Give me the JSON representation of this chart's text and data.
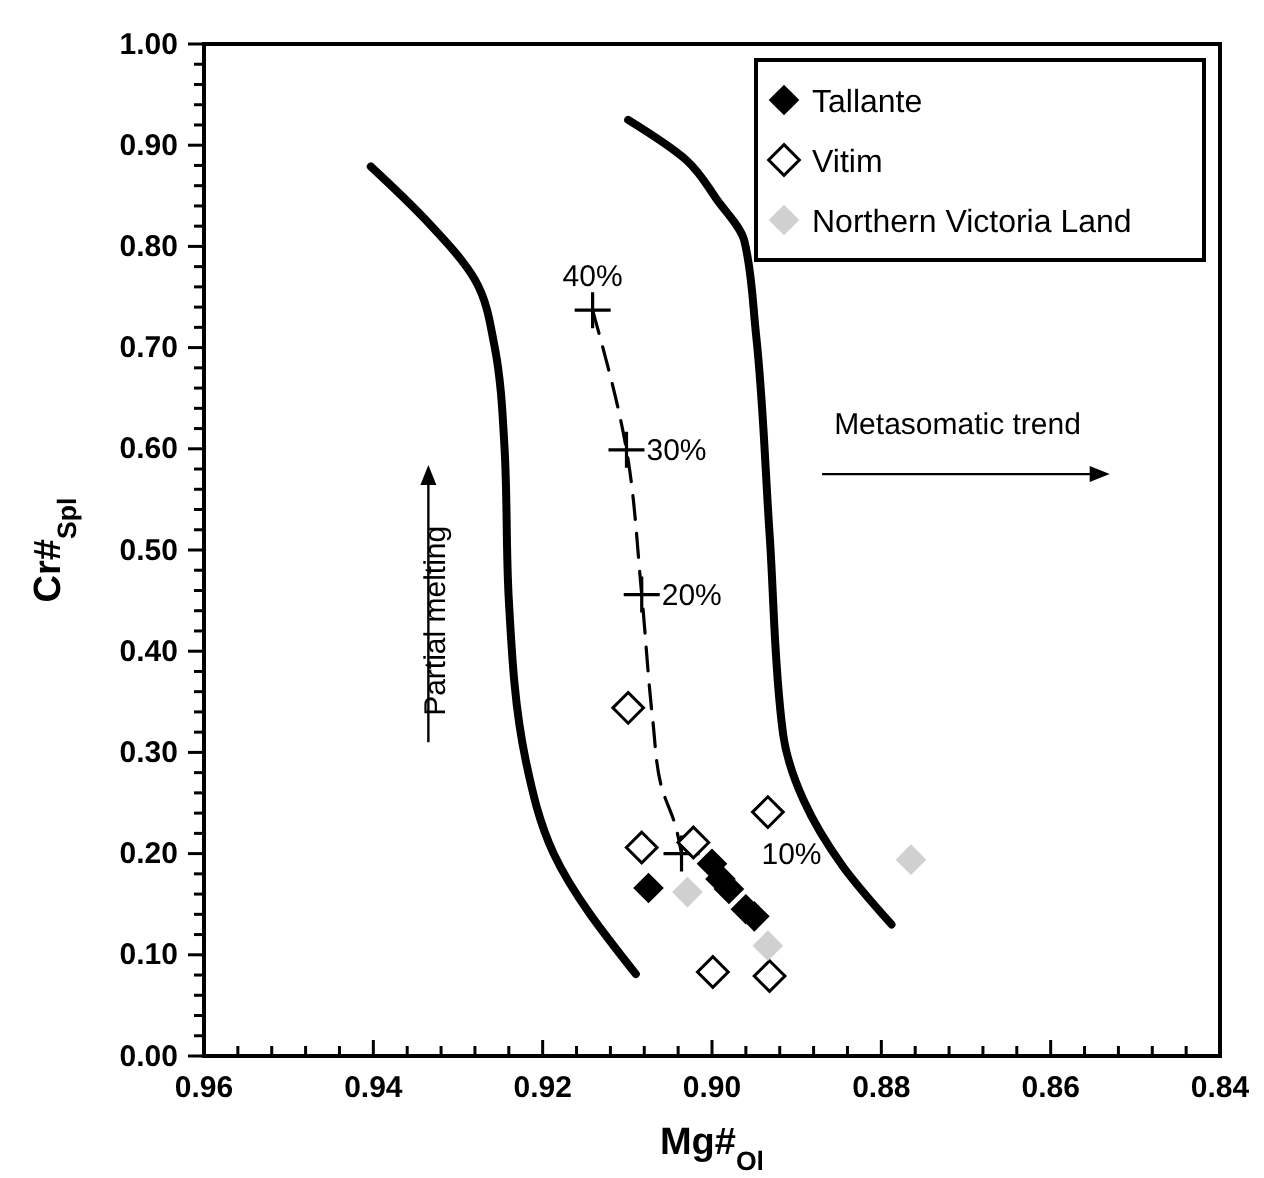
{
  "chart_data": {
    "type": "scatter",
    "xlabel": "Mg#$_{Ol}$",
    "ylabel": "Cr#$_{Spl}$",
    "xlim": [
      0.96,
      0.84
    ],
    "ylim": [
      0,
      1
    ],
    "xticks": [
      {
        "value": 0.96,
        "label": "0.96"
      },
      {
        "value": 0.956,
        "label": null
      },
      {
        "value": 0.952,
        "label": null
      },
      {
        "value": 0.948,
        "label": null
      },
      {
        "value": 0.944,
        "label": null
      },
      {
        "value": 0.94,
        "label": "0.94"
      },
      {
        "value": 0.936,
        "label": null
      },
      {
        "value": 0.932,
        "label": null
      },
      {
        "value": 0.928,
        "label": null
      },
      {
        "value": 0.924,
        "label": null
      },
      {
        "value": 0.92,
        "label": "0.92"
      },
      {
        "value": 0.916,
        "label": null
      },
      {
        "value": 0.912,
        "label": null
      },
      {
        "value": 0.908,
        "label": null
      },
      {
        "value": 0.904,
        "label": null
      },
      {
        "value": 0.9,
        "label": "0.90"
      },
      {
        "value": 0.896,
        "label": null
      },
      {
        "value": 0.892,
        "label": null
      },
      {
        "value": 0.888,
        "label": null
      },
      {
        "value": 0.884,
        "label": null
      },
      {
        "value": 0.88,
        "label": "0.88"
      },
      {
        "value": 0.876,
        "label": null
      },
      {
        "value": 0.872,
        "label": null
      },
      {
        "value": 0.868,
        "label": null
      },
      {
        "value": 0.864,
        "label": null
      },
      {
        "value": 0.86,
        "label": "0.86"
      },
      {
        "value": 0.856,
        "label": null
      },
      {
        "value": 0.852,
        "label": null
      },
      {
        "value": 0.848,
        "label": null
      },
      {
        "value": 0.844,
        "label": null
      },
      {
        "value": 0.84,
        "label": "0.84"
      }
    ],
    "yticks": [
      {
        "value": 0,
        "label": "0.00"
      },
      {
        "value": 0.02,
        "label": null
      },
      {
        "value": 0.04,
        "label": null
      },
      {
        "value": 0.06,
        "label": null
      },
      {
        "value": 0.08,
        "label": null
      },
      {
        "value": 0.1,
        "label": "0.10"
      },
      {
        "value": 0.12,
        "label": null
      },
      {
        "value": 0.14,
        "label": null
      },
      {
        "value": 0.16,
        "label": null
      },
      {
        "value": 0.18,
        "label": null
      },
      {
        "value": 0.2,
        "label": "0.20"
      },
      {
        "value": 0.22,
        "label": null
      },
      {
        "value": 0.24,
        "label": null
      },
      {
        "value": 0.26,
        "label": null
      },
      {
        "value": 0.28,
        "label": null
      },
      {
        "value": 0.3,
        "label": "0.30"
      },
      {
        "value": 0.32,
        "label": null
      },
      {
        "value": 0.34,
        "label": null
      },
      {
        "value": 0.36,
        "label": null
      },
      {
        "value": 0.38,
        "label": null
      },
      {
        "value": 0.4,
        "label": "0.40"
      },
      {
        "value": 0.42,
        "label": null
      },
      {
        "value": 0.44,
        "label": null
      },
      {
        "value": 0.46,
        "label": null
      },
      {
        "value": 0.48,
        "label": null
      },
      {
        "value": 0.5,
        "label": "0.50"
      },
      {
        "value": 0.52,
        "label": null
      },
      {
        "value": 0.54,
        "label": null
      },
      {
        "value": 0.56,
        "label": null
      },
      {
        "value": 0.58,
        "label": null
      },
      {
        "value": 0.6,
        "label": "0.60"
      },
      {
        "value": 0.62,
        "label": null
      },
      {
        "value": 0.64,
        "label": null
      },
      {
        "value": 0.66,
        "label": null
      },
      {
        "value": 0.68,
        "label": null
      },
      {
        "value": 0.7,
        "label": "0.70"
      },
      {
        "value": 0.72,
        "label": null
      },
      {
        "value": 0.74,
        "label": null
      },
      {
        "value": 0.76,
        "label": null
      },
      {
        "value": 0.78,
        "label": null
      },
      {
        "value": 0.8,
        "label": "0.80"
      },
      {
        "value": 0.82,
        "label": null
      },
      {
        "value": 0.84,
        "label": null
      },
      {
        "value": 0.86,
        "label": null
      },
      {
        "value": 0.88,
        "label": null
      },
      {
        "value": 0.9,
        "label": "0.90"
      },
      {
        "value": 0.92,
        "label": null
      },
      {
        "value": 0.94,
        "label": null
      },
      {
        "value": 0.96,
        "label": null
      },
      {
        "value": 0.98,
        "label": null
      },
      {
        "value": 1,
        "label": "1.00"
      }
    ],
    "grid": false,
    "legend": "top right",
    "series": [
      {
        "type": "line",
        "color": "#000000",
        "line_style": "solid",
        "marker": "none",
        "x": [
          0.9403,
          0.9338,
          0.928,
          0.9257,
          0.9245,
          0.924,
          0.922,
          0.9187,
          0.909
        ],
        "values": [
          0.879,
          0.826,
          0.767,
          0.702,
          0.6,
          0.451,
          0.292,
          0.2,
          0.081
        ]
      },
      {
        "type": "line",
        "color": "#000000",
        "line_style": "solid",
        "marker": "none",
        "x": [
          0.9099,
          0.903,
          0.8994,
          0.8962,
          0.8948,
          0.8932,
          0.8916,
          0.8892,
          0.8846,
          0.8788
        ],
        "values": [
          0.925,
          0.885,
          0.846,
          0.806,
          0.713,
          0.516,
          0.318,
          0.253,
          0.188,
          0.13
        ]
      },
      {
        "type": "line",
        "color": "#000000",
        "line_style": "dashed",
        "marker": "none",
        "x": [
          0.9141,
          0.9101,
          0.9083,
          0.907,
          0.906,
          0.9043,
          0.9036
        ],
        "values": [
          0.737,
          0.599,
          0.456,
          0.332,
          0.267,
          0.227,
          0.2
        ]
      },
      {
        "color": "#000000",
        "marker": "cross",
        "x": [
          0.9141,
          0.9101,
          0.9083,
          0.9036
        ],
        "values": [
          0.737,
          0.599,
          0.456,
          0.2
        ]
      },
      {
        "name": "Tallante",
        "color": "#000000",
        "marker": "diamond",
        "x": [
          0.9075,
          0.9,
          0.899,
          0.898,
          0.896,
          0.895
        ],
        "values": [
          0.166,
          0.19,
          0.175,
          0.165,
          0.145,
          0.138
        ]
      },
      {
        "name": "Vitim",
        "color": "#ffffff",
        "marker": "diamond",
        "x": [
          0.9099,
          0.9083,
          0.9022,
          0.8934,
          0.8999,
          0.8932
        ],
        "values": [
          0.344,
          0.206,
          0.211,
          0.241,
          0.083,
          0.079
        ]
      },
      {
        "name": "Northern Victoria Land",
        "color": "#d0d0d0",
        "marker": "diamond",
        "x": [
          0.9029,
          0.8934,
          0.8765
        ],
        "values": [
          0.162,
          0.109,
          0.194
        ]
      }
    ],
    "annotations": [
      {
        "text": "40%",
        "x": 0.9141,
        "y": 0.737
      },
      {
        "text": "30%",
        "x": 0.9101,
        "y": 0.599
      },
      {
        "text": "20%",
        "x": 0.9083,
        "y": 0.456
      },
      {
        "text": "10%",
        "x": 0.9036,
        "y": 0.2
      },
      "Partial melting",
      "Metasomatic trend"
    ]
  }
}
